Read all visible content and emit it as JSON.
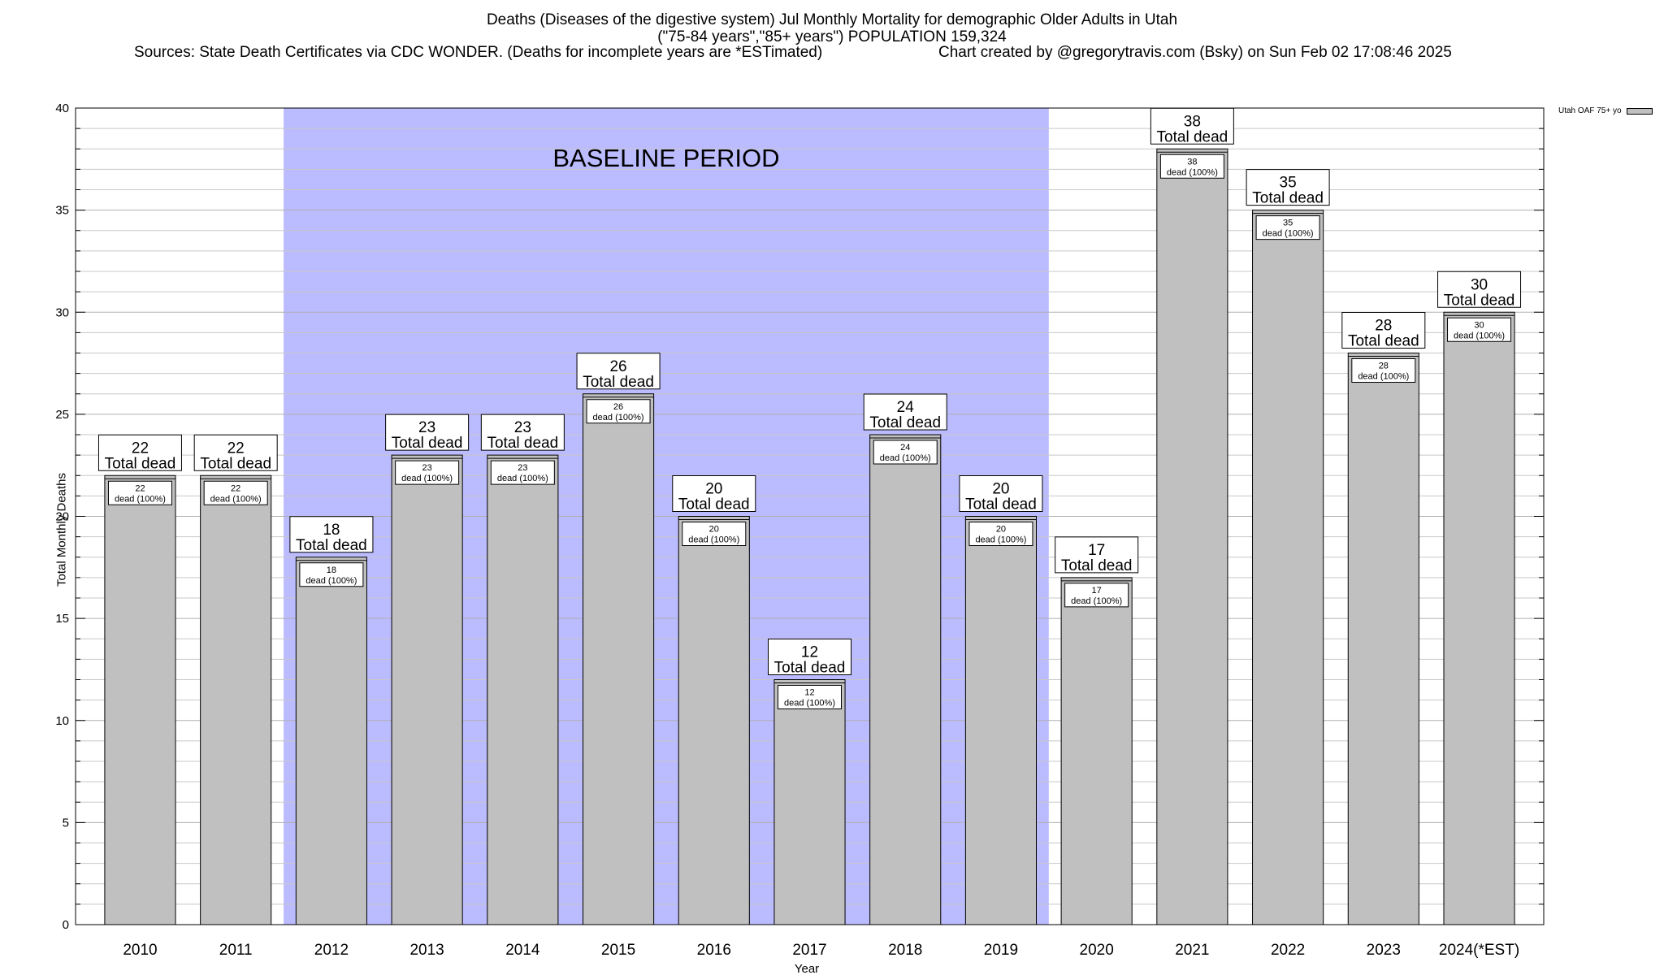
{
  "header": {
    "title_line1": "Deaths (Diseases of the digestive system) Jul Monthly Mortality for demographic Older Adults in Utah",
    "title_line2": "(\"75-84 years\",\"85+ years\") POPULATION 159,324",
    "sources": "Sources: State Death Certificates via CDC WONDER. (Deaths for incomplete years are *ESTimated)",
    "credit": "Chart created by @gregorytravis.com (Bsky) on Sun Feb 02 17:08:46 2025"
  },
  "legend": {
    "label": "Utah OAF 75+ yo"
  },
  "colors": {
    "bar": "#c0c0c0",
    "baseline": "#bbbbff",
    "grid": "#c8c8c8"
  },
  "chart_data": {
    "type": "bar",
    "xlabel": "Year",
    "ylabel": "Total Monthly Deaths",
    "ylim": [
      0,
      40
    ],
    "yticks": [
      0,
      5,
      10,
      15,
      20,
      25,
      30,
      35,
      40
    ],
    "grid": true,
    "legend_position": "top-right",
    "categories": [
      "2010",
      "2011",
      "2012",
      "2013",
      "2014",
      "2015",
      "2016",
      "2017",
      "2018",
      "2019",
      "2020",
      "2021",
      "2022",
      "2023",
      "2024(*EST)"
    ],
    "series": [
      {
        "name": "Utah OAF 75+ yo",
        "values": [
          22,
          22,
          18,
          23,
          23,
          26,
          20,
          12,
          24,
          20,
          17,
          38,
          35,
          28,
          30
        ]
      }
    ],
    "bar_label_total": "Total dead",
    "bar_label_inner": "dead (100%)",
    "baseline": {
      "label": "BASELINE PERIOD",
      "start": "2012",
      "end": "2019"
    }
  }
}
